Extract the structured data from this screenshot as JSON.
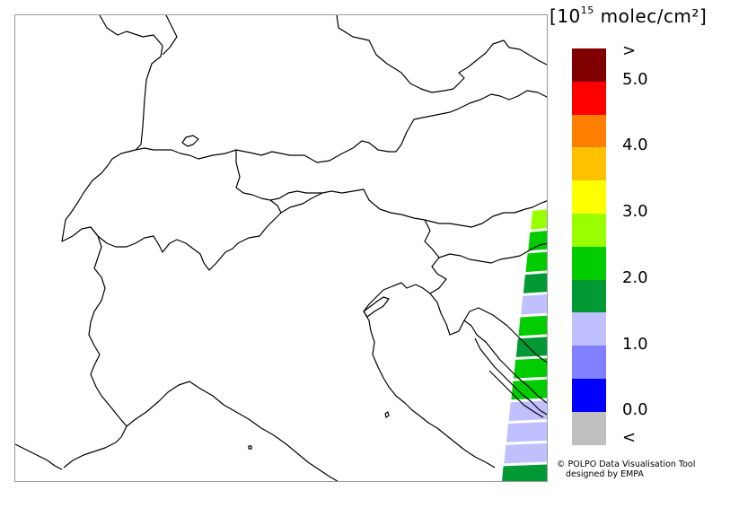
{
  "unit": {
    "open": "[",
    "pre": "10",
    "exp": "15",
    "post": " molec/cm²",
    "close": "]"
  },
  "legend": {
    "colors": [
      "#800000",
      "#ff0000",
      "#ff8000",
      "#ffc000",
      "#ffff00",
      "#99ff00",
      "#00cc00",
      "#009933",
      "#c0c0ff",
      "#8080ff",
      "#0000ff",
      "#c0c0c0"
    ],
    "labels": [
      ">",
      "5.0",
      "4.0",
      "3.0",
      "2.0",
      "1.0",
      "0.0",
      "<"
    ]
  },
  "swath_colors": {
    "light_green": "#99ff00",
    "green": "#00cc00",
    "dark_green": "#009933",
    "lavender": "#c0c0ff"
  },
  "swath_pixels": [
    "light_green",
    "green",
    "green",
    "dark_green",
    "lavender",
    "green",
    "dark_green",
    "green",
    "green",
    "lavender",
    "lavender",
    "lavender",
    "dark_green",
    "green",
    "lavender"
  ],
  "credit": {
    "line1": "© POLPO Data Visualisation Tool",
    "line2": "designed by EMPA"
  }
}
